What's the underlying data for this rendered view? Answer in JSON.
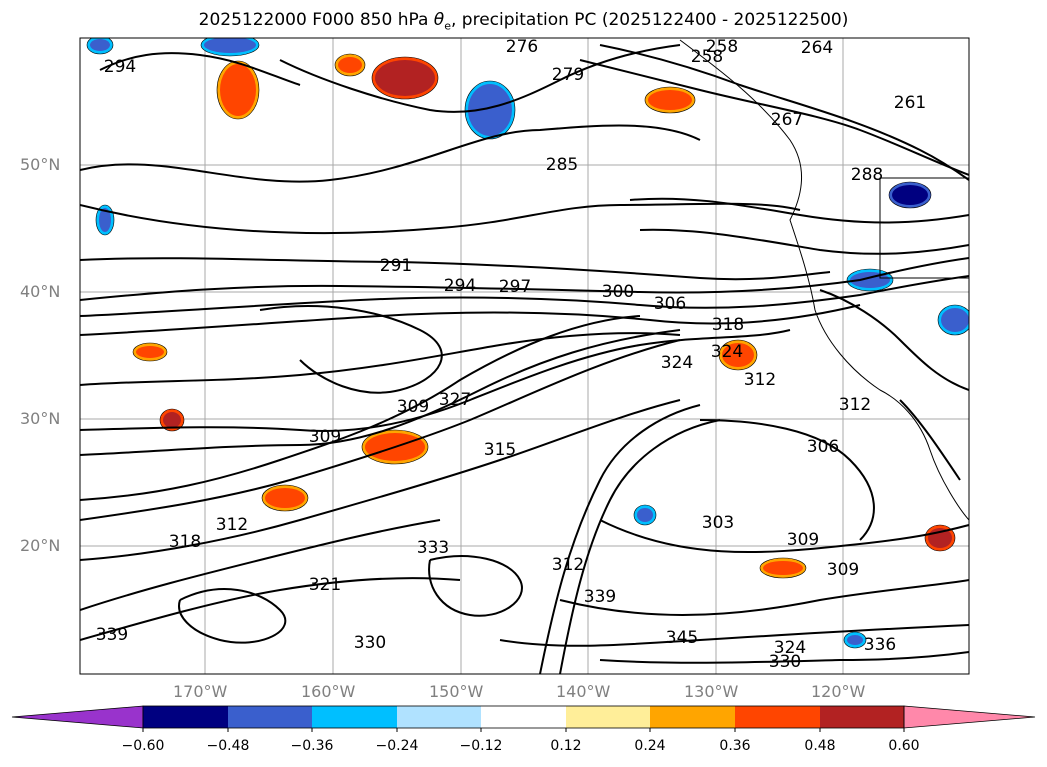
{
  "title": {
    "prefix": "2025122000 F000 850 hPa ",
    "symbol": "θ",
    "subscript": "e",
    "suffix": ", precipitation PC (2025122400 - 2025122500)"
  },
  "axes": {
    "lat_labels": [
      "50°N",
      "40°N",
      "30°N",
      "20°N"
    ],
    "lon_labels": [
      "170°W",
      "160°W",
      "150°W",
      "140°W",
      "130°W",
      "120°W"
    ]
  },
  "contour_labels": [
    "294",
    "276",
    "258",
    "264",
    "279",
    "258",
    "261",
    "267",
    "285",
    "288",
    "291",
    "294",
    "297",
    "300",
    "306",
    "318",
    "324",
    "324",
    "312",
    "312",
    "309",
    "309",
    "306",
    "315",
    "303",
    "309",
    "312",
    "318",
    "321",
    "333",
    "330",
    "339",
    "345",
    "324",
    "330",
    "339",
    "309",
    "327",
    "312",
    "336"
  ],
  "colorbar": {
    "tick_labels": [
      "−0.60",
      "−0.48",
      "−0.36",
      "−0.24",
      "−0.12",
      "0.12",
      "0.24",
      "0.36",
      "0.48",
      "0.60"
    ],
    "colors": [
      "#9933cc",
      "#000080",
      "#3a5fcd",
      "#00bfff",
      "#b0e2ff",
      "#ffffff",
      "#ffee99",
      "#ffa500",
      "#ff4500",
      "#b22222",
      "#ff88aa"
    ]
  },
  "colors": {
    "contour": "#000000",
    "grid": "#a9a9a9",
    "coast": "#000000"
  }
}
